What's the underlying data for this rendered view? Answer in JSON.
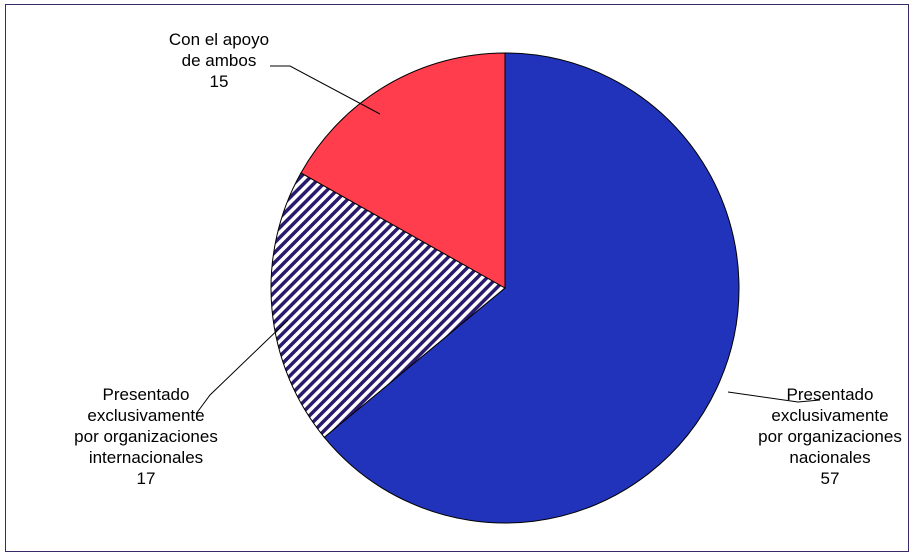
{
  "chart_data": {
    "type": "pie",
    "title": "",
    "slices": [
      {
        "label_lines": [
          "Presentado",
          "exclusivamente",
          "por organizaciones",
          "nacionales"
        ],
        "value": 57,
        "value_text": "57",
        "fill": "#2233bb",
        "pattern": "solid"
      },
      {
        "label_lines": [
          "Presentado",
          "exclusivamente",
          "por organizaciones",
          "internacionales"
        ],
        "value": 17,
        "value_text": "17",
        "fill": "#2a1a6e",
        "pattern": "diagonal-stripes"
      },
      {
        "label_lines": [
          "Con el apoyo",
          "de ambos"
        ],
        "value": 15,
        "value_text": "15",
        "fill": "#ff3d4d",
        "pattern": "solid"
      }
    ],
    "start_angle": "12 o'clock",
    "direction": "clockwise",
    "legend": "none",
    "data_labels": "outside with leader lines"
  }
}
